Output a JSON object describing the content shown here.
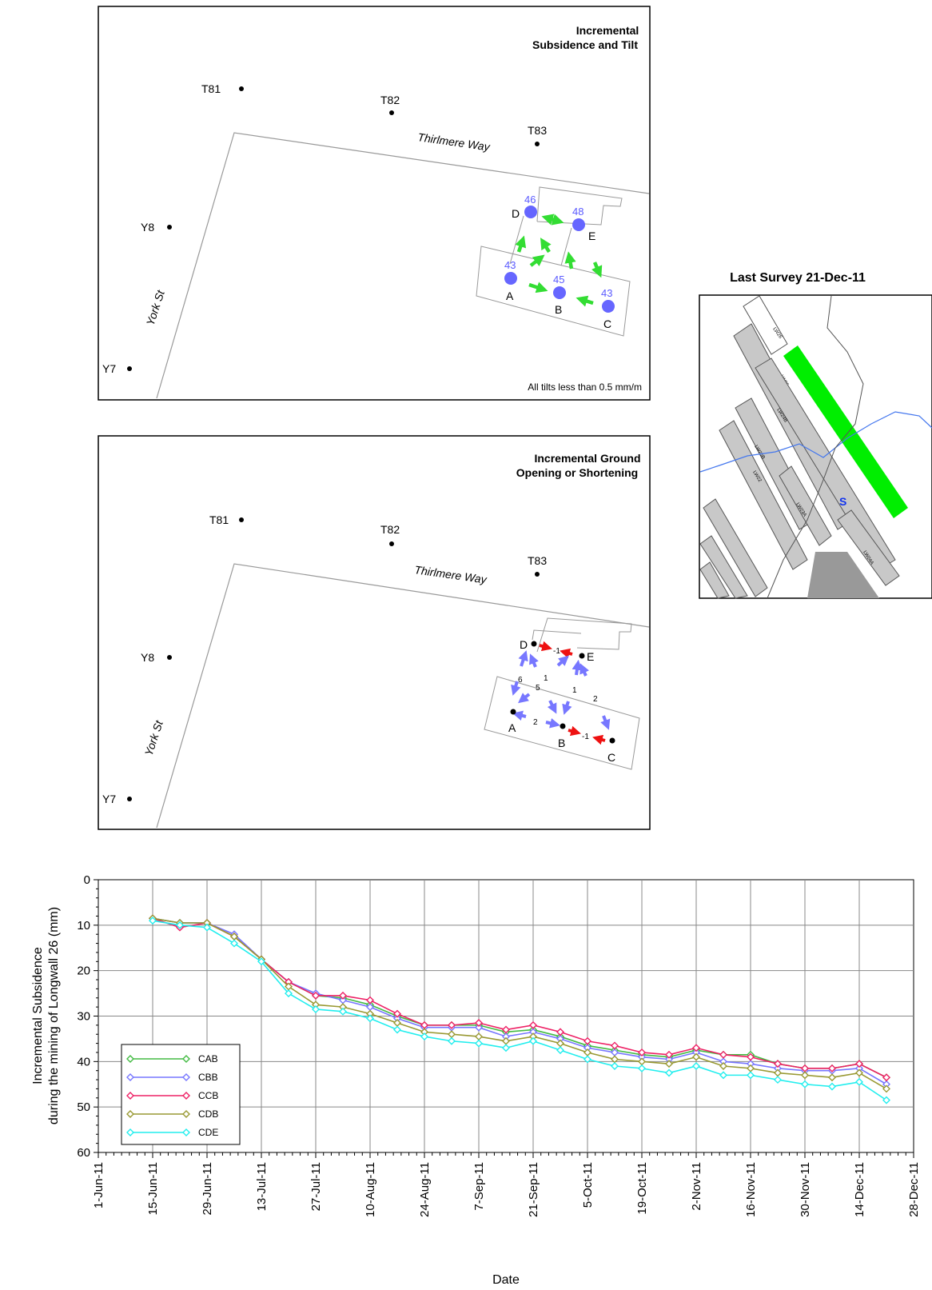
{
  "panel1": {
    "title_line1": "Incremental",
    "title_line2": "Subsidence and Tilt",
    "note": "All tilts less than 0.5 mm/m",
    "survey_marks": [
      "T81",
      "T82",
      "T83",
      "Y8",
      "Y7"
    ],
    "streets": [
      "Thirlmere Way",
      "York St"
    ],
    "points": [
      {
        "label": "D",
        "value": "46"
      },
      {
        "label": "E",
        "value": "48"
      },
      {
        "label": "A",
        "value": "43"
      },
      {
        "label": "B",
        "value": "45"
      },
      {
        "label": "C",
        "value": "43"
      }
    ]
  },
  "panel2": {
    "title_line1": "Incremental Ground",
    "title_line2": "Opening or Shortening",
    "survey_marks": [
      "T81",
      "T82",
      "T83",
      "Y8",
      "Y7"
    ],
    "streets": [
      "Thirlmere Way",
      "York St"
    ],
    "points": [
      "D",
      "E",
      "A",
      "B",
      "C"
    ],
    "values": {
      "DE": "-1",
      "AD": "6",
      "AE": "5",
      "BD": "1",
      "BE": "1",
      "CE": "2",
      "AB": "2",
      "BC": "-1"
    }
  },
  "inset": {
    "title": "Last Survey 21-Dec-11",
    "panels": [
      "LW26",
      "LW25",
      "LW24B",
      "LW25B",
      "LW22",
      "LW23A",
      "LW24A",
      "LW25A"
    ],
    "highlight_color": "#00ee00"
  },
  "colors": {
    "CAB": "#44bb44",
    "CBB": "#7777ff",
    "CCB": "#ee2266",
    "CDB": "#999933",
    "CDE": "#22eeee",
    "arrow_green": "#33dd33",
    "arrow_blue": "#7777ff",
    "arrow_red": "#ee1111",
    "point_blue": "#6666ff"
  },
  "chart_data": {
    "type": "line",
    "ylabel": "Incremental Subsidence during the mining of Longwall 26 (mm)",
    "xlabel": "Date",
    "ylim": [
      0,
      60
    ],
    "y_inverted": true,
    "y_ticks": [
      "0",
      "10",
      "20",
      "30",
      "40",
      "50",
      "60"
    ],
    "x_ticks": [
      "1-Jun-11",
      "15-Jun-11",
      "29-Jun-11",
      "13-Jul-11",
      "27-Jul-11",
      "10-Aug-11",
      "24-Aug-11",
      "7-Sep-11",
      "21-Sep-11",
      "5-Oct-11",
      "19-Oct-11",
      "2-Nov-11",
      "16-Nov-11",
      "30-Nov-11",
      "14-Dec-11",
      "28-Dec-11"
    ],
    "xlim": [
      "2011-06-01",
      "2011-12-28"
    ],
    "grid": true,
    "legend_position": "bottom-left",
    "x": [
      "2011-06-15",
      "2011-06-22",
      "2011-06-29",
      "2011-07-06",
      "2011-07-13",
      "2011-07-20",
      "2011-07-27",
      "2011-08-03",
      "2011-08-10",
      "2011-08-17",
      "2011-08-24",
      "2011-08-31",
      "2011-09-07",
      "2011-09-14",
      "2011-09-21",
      "2011-09-28",
      "2011-10-05",
      "2011-10-12",
      "2011-10-19",
      "2011-10-26",
      "2011-11-02",
      "2011-11-09",
      "2011-11-16",
      "2011-11-23",
      "2011-11-30",
      "2011-12-07",
      "2011-12-14",
      "2011-12-21"
    ],
    "series": [
      {
        "name": "CAB",
        "values": [
          8.5,
          9.5,
          9.5,
          12.5,
          17.5,
          22.5,
          25.5,
          26.0,
          27.5,
          30.0,
          32.0,
          32.0,
          32.0,
          33.5,
          33.0,
          34.5,
          36.5,
          37.5,
          38.5,
          39.0,
          37.5,
          38.5,
          38.5,
          40.5,
          41.5,
          41.5,
          40.5,
          43.5
        ]
      },
      {
        "name": "CBB",
        "values": [
          8.5,
          9.5,
          9.5,
          12.0,
          17.5,
          22.5,
          25.0,
          26.5,
          28.0,
          30.5,
          32.5,
          32.5,
          32.5,
          34.5,
          33.5,
          35.0,
          37.0,
          38.0,
          39.0,
          39.5,
          38.0,
          40.0,
          40.5,
          41.5,
          42.0,
          42.0,
          41.5,
          45.0
        ]
      },
      {
        "name": "CCB",
        "values": [
          8.5,
          10.5,
          9.5,
          12.5,
          17.5,
          22.5,
          25.5,
          25.5,
          26.5,
          29.5,
          32.0,
          32.0,
          31.5,
          33.0,
          32.0,
          33.5,
          35.5,
          36.5,
          38.0,
          38.5,
          37.0,
          38.5,
          39.0,
          40.5,
          41.5,
          41.5,
          40.5,
          43.5
        ]
      },
      {
        "name": "CDB",
        "values": [
          8.5,
          9.5,
          9.5,
          12.5,
          17.5,
          23.5,
          27.5,
          28.0,
          29.5,
          31.5,
          33.5,
          34.0,
          34.5,
          35.5,
          34.5,
          36.0,
          38.0,
          39.5,
          40.0,
          40.5,
          39.0,
          41.0,
          41.5,
          42.5,
          43.0,
          43.5,
          42.5,
          46.0
        ]
      },
      {
        "name": "CDE",
        "values": [
          9.0,
          10.0,
          10.5,
          14.0,
          18.0,
          25.0,
          28.5,
          29.0,
          30.5,
          33.0,
          34.5,
          35.5,
          36.0,
          37.0,
          35.5,
          37.5,
          39.5,
          41.0,
          41.5,
          42.5,
          41.0,
          43.0,
          43.0,
          44.0,
          45.0,
          45.5,
          44.5,
          48.5
        ]
      }
    ]
  }
}
